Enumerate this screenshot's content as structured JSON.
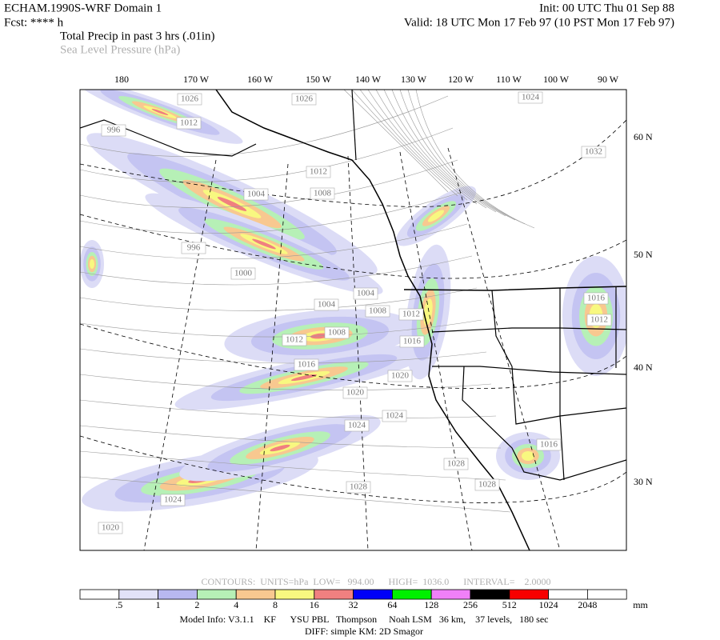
{
  "header": {
    "title": "ECHAM.1990S-WRF Domain 1",
    "init": "Init: 00 UTC Thu 01 Sep 88",
    "forecast": "Fcst: **** h",
    "valid": "Valid: 18 UTC Mon 17 Feb 97 (10 PST Mon 17 Feb 97)",
    "field": "Total Precip in past 3 hrs (.01in)",
    "contour_field": "Sea Level Pressure (hPa)"
  },
  "map": {
    "longitude_labels": [
      "180",
      "170 W",
      "160 W",
      "150 W",
      "140 W",
      "130 W",
      "120 W",
      "110 W",
      "100 W",
      "90 W"
    ],
    "latitude_labels": [
      "60 N",
      "50 N",
      "40 N",
      "30 N"
    ],
    "isobar_labels": [
      "1026",
      "1026",
      "1024",
      "1012",
      "996",
      "1032",
      "1012",
      "1004",
      "1008",
      "996",
      "1000",
      "1004",
      "1004",
      "1008",
      "1012",
      "1016",
      "1012",
      "1008",
      "1012",
      "1016",
      "1016",
      "1020",
      "1020",
      "1024",
      "1024",
      "1016",
      "1028",
      "1028",
      "1028",
      "1024",
      "1020"
    ]
  },
  "contour_info": "CONTOURS:  UNITS=hPa  LOW=   994.00      HIGH=  1036.0      INTERVAL=    2.0000",
  "colorbar": {
    "colors": [
      "#ffffff",
      "#e2e2f8",
      "#b8b8f0",
      "#b6f0b6",
      "#f8c890",
      "#f8f880",
      "#f08080",
      "#0000f8",
      "#00f000",
      "#f080f8",
      "#000000",
      "#f80000",
      "#ffffff",
      "#ffffff"
    ],
    "labels": [
      ".5",
      "1",
      "2",
      "4",
      "8",
      "16",
      "32",
      "64",
      "128",
      "256",
      "512",
      "1024",
      "2048"
    ],
    "unit": "mm"
  },
  "footer": {
    "model_info": "Model Info: V3.1.1    KF      YSU PBL   Thompson     Noah LSM   36 km,    37 levels,   180 sec",
    "diff": "DIFF: simple KM: 2D Smagor"
  }
}
